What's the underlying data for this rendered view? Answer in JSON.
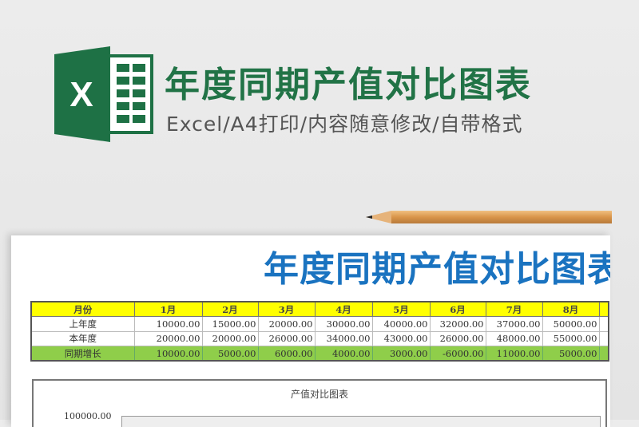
{
  "header": {
    "title": "年度同期产值对比图表",
    "subtitle": "Excel/A4打印/内容随意修改/自带格式",
    "logo_letter": "X"
  },
  "sheet": {
    "title": "年度同期产值对比图表",
    "columns": [
      "月份",
      "1月",
      "2月",
      "3月",
      "4月",
      "5月",
      "6月",
      "7月",
      "8月",
      ""
    ],
    "rows": [
      {
        "label": "上年度",
        "values": [
          "10000.00",
          "15000.00",
          "20000.00",
          "30000.00",
          "40000.00",
          "32000.00",
          "37000.00",
          "50000.00",
          ""
        ]
      },
      {
        "label": "本年度",
        "values": [
          "20000.00",
          "20000.00",
          "26000.00",
          "34000.00",
          "43000.00",
          "26000.00",
          "48000.00",
          "55000.00",
          ""
        ]
      },
      {
        "label": "同期增长",
        "values": [
          "10000.00",
          "5000.00",
          "6000.00",
          "4000.00",
          "3000.00",
          "-6000.00",
          "11000.00",
          "5000.00",
          ""
        ]
      }
    ]
  },
  "chart": {
    "title": "产值对比图表",
    "y_max_label": "100000.00"
  },
  "colors": {
    "brand_green": "#217346",
    "title_blue": "#1a73c0",
    "header_yellow": "#ffff00",
    "growth_green": "#8fce4a"
  }
}
